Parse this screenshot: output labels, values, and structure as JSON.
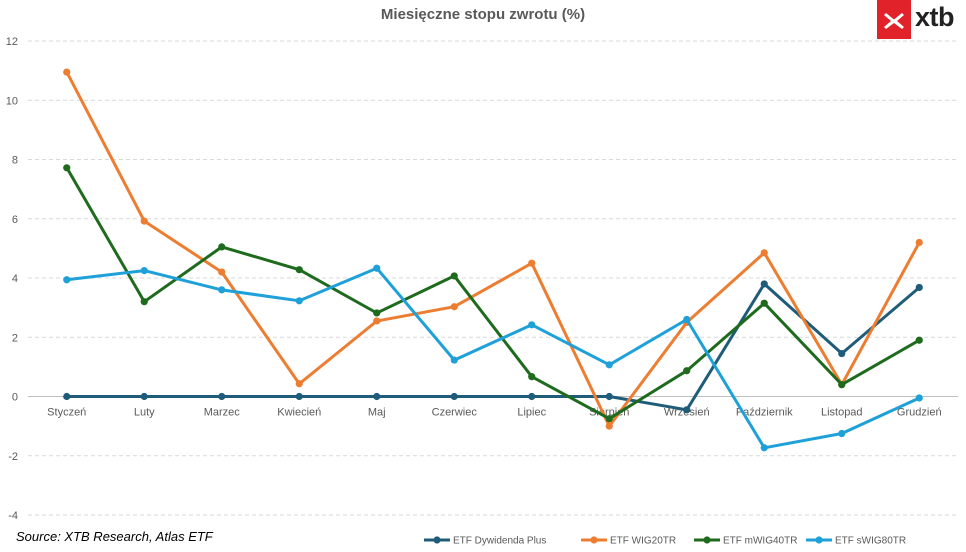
{
  "logo": {
    "text": "xtb",
    "color": "#e2222b"
  },
  "source": "Source: XTB Research, Atlas ETF",
  "chart_data": {
    "type": "line",
    "title": "Miesięczne stopu zwrotu (%)",
    "xlabel": "",
    "ylabel": "",
    "categories": [
      "Styczeń",
      "Luty",
      "Marzec",
      "Kwiecień",
      "Maj",
      "Czerwiec",
      "Lipiec",
      "Sierpień",
      "Wrzesień",
      "Październik",
      "Listopad",
      "Grudzień"
    ],
    "ylim": [
      -4,
      12
    ],
    "yticks": [
      -4,
      -2,
      0,
      2,
      4,
      6,
      8,
      10,
      12
    ],
    "grid": true,
    "legend_position": "bottom-right",
    "series": [
      {
        "name": "ETF Dywidenda Plus",
        "color": "#1f5c7a",
        "values": [
          0,
          0,
          0,
          0,
          0,
          0,
          0,
          0,
          -0.45,
          3.8,
          1.45,
          3.68
        ]
      },
      {
        "name": "ETF WIG20TR",
        "color": "#ed7d31",
        "values": [
          10.95,
          5.92,
          4.2,
          0.43,
          2.55,
          3.03,
          4.5,
          -1.0,
          2.5,
          4.85,
          0.4,
          5.2
        ]
      },
      {
        "name": "ETF mWIG40TR",
        "color": "#1e6b1e",
        "values": [
          7.72,
          3.2,
          5.05,
          4.28,
          2.82,
          4.07,
          0.67,
          -0.75,
          0.87,
          3.15,
          0.4,
          1.9
        ]
      },
      {
        "name": "ETF sWIG80TR",
        "color": "#1ea0d8",
        "values": [
          3.94,
          4.25,
          3.6,
          3.23,
          4.33,
          1.23,
          2.42,
          1.07,
          2.6,
          -1.73,
          -1.25,
          -0.05
        ]
      }
    ]
  }
}
